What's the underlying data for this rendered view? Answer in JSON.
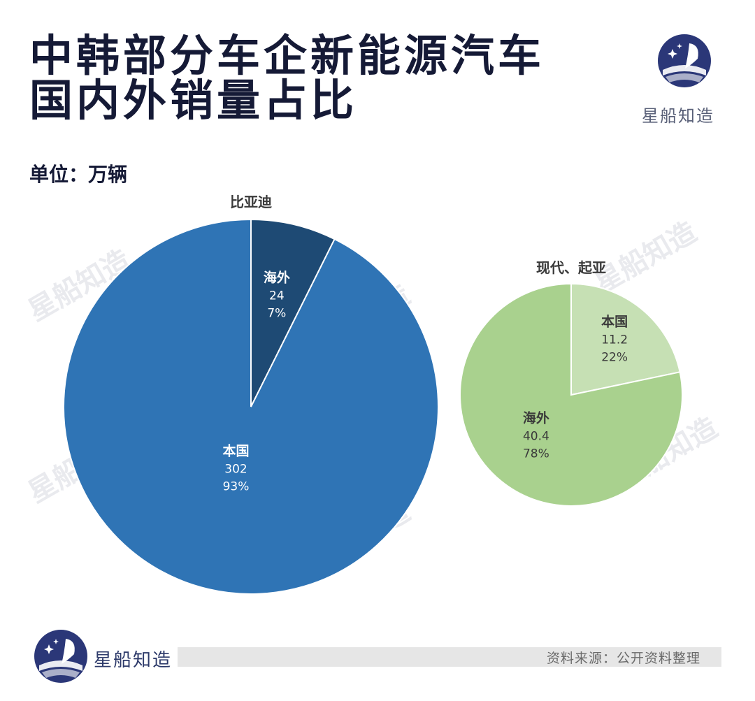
{
  "header": {
    "title_line1": "中韩部分车企新能源汽车",
    "title_line2": "国内外销量占比",
    "brand": "星船知造",
    "unit": "单位：万辆"
  },
  "watermark": "星船知造",
  "footer": {
    "brand": "星船知造",
    "source": "资料来源：公开资料整理"
  },
  "colors": {
    "title": "#151a36",
    "byd_domestic": "#2f74b5",
    "byd_overseas": "#1e4a74",
    "hk_domestic": "#c6e0b4",
    "hk_overseas": "#a9d18e"
  },
  "chart_data": [
    {
      "type": "pie",
      "title": "比亚迪",
      "slices": [
        {
          "label": "海外",
          "value": 24,
          "percent": "7%",
          "color": "#1e4a74"
        },
        {
          "label": "本国",
          "value": 302,
          "percent": "93%",
          "color": "#2f74b5"
        }
      ]
    },
    {
      "type": "pie",
      "title": "现代、起亚",
      "slices": [
        {
          "label": "本国",
          "value": 11.2,
          "percent": "22%",
          "color": "#c6e0b4"
        },
        {
          "label": "海外",
          "value": 40.4,
          "percent": "78%",
          "color": "#a9d18e"
        }
      ]
    }
  ]
}
